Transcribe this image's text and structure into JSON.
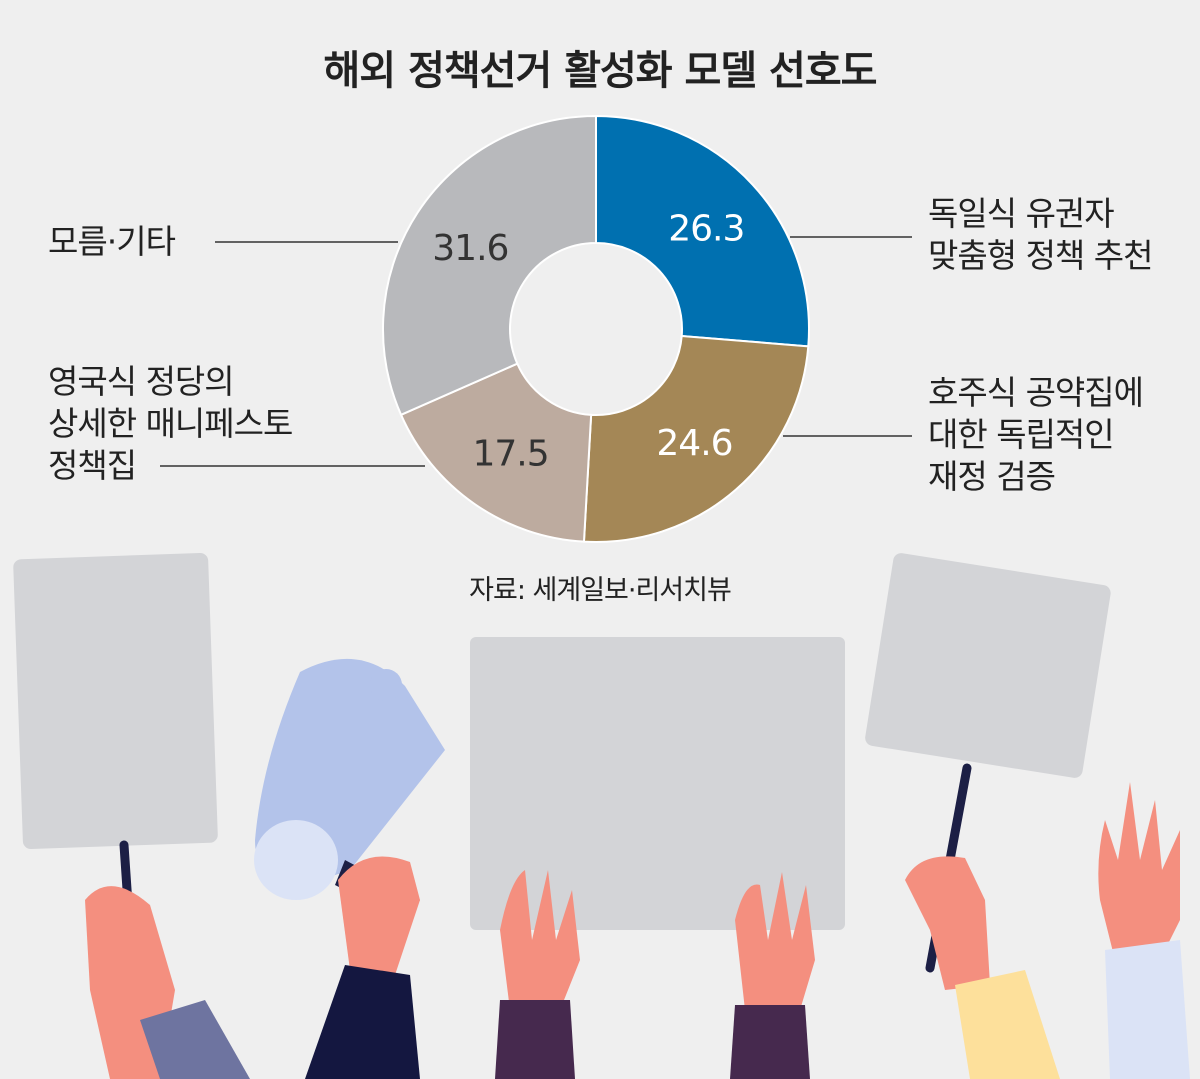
{
  "chart_data": {
    "type": "pie",
    "title": "해외 정책선거 활성화 모델 선호도",
    "categories": [
      "독일식 유권자\n맞춤형 정책 추천",
      "호주식 공약집에\n대한 독립적인\n재정 검증",
      "영국식 정당의\n상세한 매니페스토\n정책집",
      "모름·기타"
    ],
    "values": [
      26.3,
      24.6,
      17.5,
      31.6
    ],
    "value_labels": [
      "26.3",
      "24.6",
      "17.5",
      "31.6"
    ],
    "colors": [
      "#0070b0",
      "#a48756",
      "#bdab9f",
      "#b8b9bc"
    ],
    "value_label_colors": [
      "#ffffff",
      "#ffffff",
      "#333333",
      "#333333"
    ],
    "donut": true,
    "legend": "none"
  },
  "source": "자료: 세계일보·리서치뷰"
}
